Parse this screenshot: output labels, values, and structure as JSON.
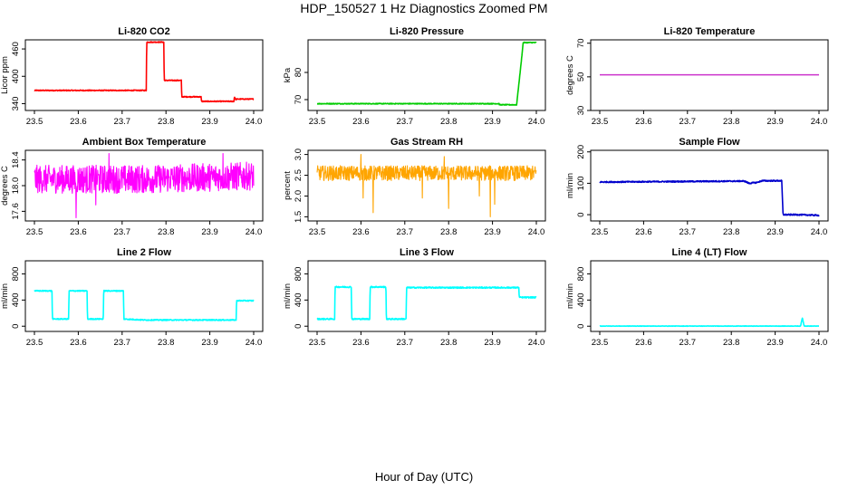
{
  "figure": {
    "title": "HDP_150527  1 Hz Diagnostics Zoomed PM",
    "xlabel": "Hour of Day (UTC)"
  },
  "chart_data": [
    {
      "type": "line",
      "title": "Li-820 CO2",
      "ylabel": "Licor ppm",
      "color": "#ff0000",
      "xlim": [
        23.5,
        24.0
      ],
      "ylim": [
        325,
        480
      ],
      "xticks": [
        "23.5",
        "23.6",
        "23.7",
        "23.8",
        "23.9",
        "24.0"
      ],
      "yticks": [
        "340",
        "400",
        "460"
      ],
      "noise": 1,
      "x": [
        23.5,
        23.755,
        23.756,
        23.795,
        23.796,
        23.835,
        23.836,
        23.88,
        23.881,
        23.955,
        23.956,
        23.96,
        23.961,
        24.0
      ],
      "y": [
        369,
        369,
        475,
        475,
        391,
        391,
        355,
        355,
        345,
        345,
        355,
        348,
        350,
        350
      ]
    },
    {
      "type": "line",
      "title": "Li-820 Pressure",
      "ylabel": "kPa",
      "color": "#00cc00",
      "xlim": [
        23.5,
        24.0
      ],
      "ylim": [
        66,
        92
      ],
      "xticks": [
        "23.5",
        "23.6",
        "23.7",
        "23.8",
        "23.9",
        "24.0"
      ],
      "yticks": [
        "70",
        "80"
      ],
      "noise": 0.15,
      "x": [
        23.5,
        23.915,
        23.916,
        23.955,
        23.965,
        23.97,
        24.0
      ],
      "y": [
        68.5,
        68.5,
        68.1,
        68.1,
        83,
        91,
        91
      ]
    },
    {
      "type": "line",
      "title": "Li-820 Temperature",
      "ylabel": "degrees C",
      "color": "#cc33cc",
      "xlim": [
        23.5,
        24.0
      ],
      "ylim": [
        30,
        72
      ],
      "xticks": [
        "23.5",
        "23.6",
        "23.7",
        "23.8",
        "23.9",
        "24.0"
      ],
      "yticks": [
        "30",
        "50",
        "70"
      ],
      "noise": 0,
      "x": [
        23.5,
        24.0
      ],
      "y": [
        51.2,
        51.2
      ]
    },
    {
      "type": "line",
      "title": "Ambient Box Temperature",
      "ylabel": "degrees C",
      "color": "#ff00ff",
      "xlim": [
        23.5,
        24.0
      ],
      "ylim": [
        17.45,
        18.55
      ],
      "xticks": [
        "23.5",
        "23.6",
        "23.7",
        "23.8",
        "23.9",
        "24.0"
      ],
      "yticks": [
        "17.6",
        "18.0",
        "18.4"
      ],
      "noise": 0.22,
      "x": [
        23.5,
        23.75,
        24.0
      ],
      "y": [
        18.1,
        18.1,
        18.15
      ],
      "spikes": [
        [
          23.595,
          17.5
        ],
        [
          23.67,
          18.5
        ],
        [
          23.64,
          17.7
        ],
        [
          23.93,
          18.5
        ]
      ]
    },
    {
      "type": "line",
      "title": "Gas Stream RH",
      "ylabel": "percent",
      "color": "#ffa500",
      "xlim": [
        23.5,
        24.0
      ],
      "ylim": [
        1.4,
        3.1
      ],
      "xticks": [
        "23.5",
        "23.6",
        "23.7",
        "23.8",
        "23.9",
        "24.0"
      ],
      "yticks": [
        "1.5",
        "2.0",
        "2.5",
        "3.0"
      ],
      "noise": 0.18,
      "x": [
        23.5,
        24.0
      ],
      "y": [
        2.55,
        2.55
      ],
      "spikes": [
        [
          23.628,
          1.6
        ],
        [
          23.605,
          1.95
        ],
        [
          23.74,
          1.95
        ],
        [
          23.8,
          1.7
        ],
        [
          23.895,
          1.5
        ],
        [
          23.905,
          1.8
        ],
        [
          23.87,
          2.0
        ],
        [
          23.6,
          3.0
        ],
        [
          23.79,
          2.95
        ]
      ]
    },
    {
      "type": "line",
      "title": "Sample Flow",
      "ylabel": "ml/min",
      "color": "#0000cc",
      "xlim": [
        23.5,
        24.0
      ],
      "ylim": [
        -20,
        205
      ],
      "xticks": [
        "23.5",
        "23.6",
        "23.7",
        "23.8",
        "23.9",
        "24.0"
      ],
      "yticks": [
        "0",
        "100",
        "200"
      ],
      "noise": 2,
      "x": [
        23.5,
        23.83,
        23.84,
        23.86,
        23.87,
        23.915,
        23.918,
        23.95,
        24.0
      ],
      "y": [
        104,
        107,
        100,
        103,
        108,
        108,
        0,
        0,
        -2
      ]
    },
    {
      "type": "line",
      "title": "Line 2 Flow",
      "ylabel": "ml/min",
      "color": "#00ffff",
      "xlim": [
        23.5,
        24.0
      ],
      "ylim": [
        -80,
        1000
      ],
      "xticks": [
        "23.5",
        "23.6",
        "23.7",
        "23.8",
        "23.9",
        "24.0"
      ],
      "yticks": [
        "0",
        "400",
        "800"
      ],
      "noise": 8,
      "x": [
        23.5,
        23.5,
        23.54,
        23.541,
        23.578,
        23.579,
        23.62,
        23.621,
        23.657,
        23.658,
        23.703,
        23.704,
        23.75,
        23.96,
        23.961,
        24.0
      ],
      "y": [
        110,
        540,
        540,
        110,
        110,
        540,
        540,
        110,
        110,
        540,
        540,
        110,
        95,
        95,
        390,
        390
      ]
    },
    {
      "type": "line",
      "title": "Line 3 Flow",
      "ylabel": "ml/min",
      "color": "#00ffff",
      "xlim": [
        23.5,
        24.0
      ],
      "ylim": [
        -80,
        1000
      ],
      "xticks": [
        "23.5",
        "23.6",
        "23.7",
        "23.8",
        "23.9",
        "24.0"
      ],
      "yticks": [
        "0",
        "400",
        "800"
      ],
      "noise": 10,
      "x": [
        23.5,
        23.5,
        23.502,
        23.503,
        23.54,
        23.541,
        23.578,
        23.579,
        23.62,
        23.621,
        23.657,
        23.658,
        23.703,
        23.704,
        23.96,
        23.961,
        24.0
      ],
      "y": [
        610,
        110,
        110,
        110,
        110,
        600,
        600,
        110,
        110,
        600,
        600,
        110,
        110,
        590,
        590,
        440,
        440
      ]
    },
    {
      "type": "line",
      "title": "Line 4 (LT) Flow",
      "ylabel": "ml/min",
      "color": "#00ffff",
      "xlim": [
        23.5,
        24.0
      ],
      "ylim": [
        -80,
        1000
      ],
      "xticks": [
        "23.5",
        "23.6",
        "23.7",
        "23.8",
        "23.9",
        "24.0"
      ],
      "yticks": [
        "0",
        "400",
        "800"
      ],
      "noise": 3,
      "x": [
        23.5,
        23.958,
        23.962,
        23.966,
        23.97,
        24.0
      ],
      "y": [
        2,
        2,
        130,
        5,
        2,
        2
      ]
    }
  ]
}
